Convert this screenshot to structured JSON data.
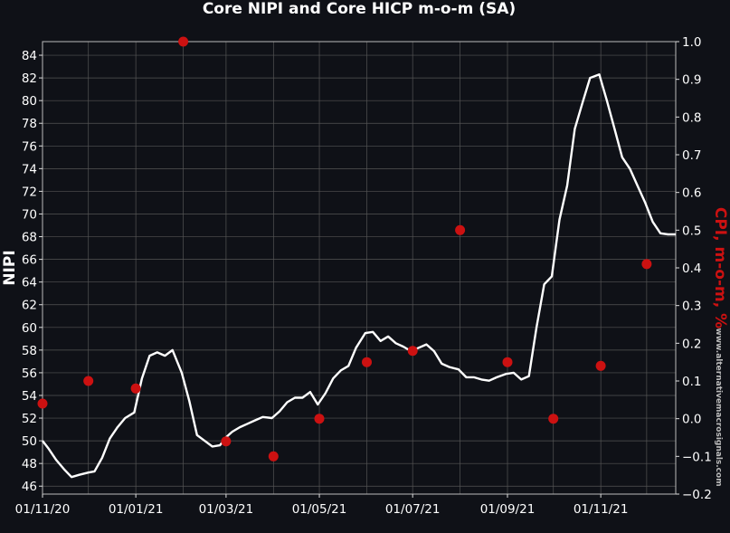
{
  "chart_data": {
    "type": "line",
    "title": "Core NIPI and Core HICP m-o-m (SA)",
    "ylabel_left": "NIPI",
    "ylabel_right": "CPI, m-o-m, %",
    "watermark": "www.alternativemacrosignals.com",
    "ylim_left": [
      45.3,
      85.2
    ],
    "ylim_right": [
      -0.2,
      1.0
    ],
    "left_ticks": [
      46,
      48,
      50,
      52,
      54,
      56,
      58,
      60,
      62,
      64,
      66,
      68,
      70,
      72,
      74,
      76,
      78,
      80,
      82,
      84
    ],
    "right_ticks": [
      "−0.2",
      "−0.1",
      "0.0",
      "0.1",
      "0.2",
      "0.3",
      "0.4",
      "0.5",
      "0.6",
      "0.7",
      "0.8",
      "0.9",
      "1.0"
    ],
    "right_tick_values": [
      -0.2,
      -0.1,
      0.0,
      0.1,
      0.2,
      0.3,
      0.4,
      0.5,
      0.6,
      0.7,
      0.8,
      0.9,
      1.0
    ],
    "x_ticks": [
      "01/11/20",
      "01/01/21",
      "01/03/21",
      "01/05/21",
      "01/07/21",
      "01/09/21",
      "01/11/21"
    ],
    "x_tick_dates": [
      "2020-11-01",
      "2021-01-01",
      "2021-03-01",
      "2021-05-01",
      "2021-07-01",
      "2021-09-01",
      "2021-11-01"
    ],
    "xlim": [
      "2020-11-01",
      "2021-12-20"
    ],
    "grid": true,
    "colors": {
      "background": "#0f1117",
      "line": "#ffffff",
      "dots": "#cc1111",
      "grid": "#555555",
      "right_axis": "#cc1111"
    },
    "series": [
      {
        "name": "NIPI",
        "axis": "left",
        "x": [
          "2020-11-01",
          "2020-11-05",
          "2020-11-10",
          "2020-11-15",
          "2020-11-20",
          "2020-11-25",
          "2020-12-01",
          "2020-12-05",
          "2020-12-10",
          "2020-12-15",
          "2020-12-20",
          "2020-12-25",
          "2020-12-31",
          "2021-01-05",
          "2021-01-10",
          "2021-01-15",
          "2021-01-20",
          "2021-01-25",
          "2021-01-31",
          "2021-02-05",
          "2021-02-10",
          "2021-02-15",
          "2021-02-20",
          "2021-02-25",
          "2021-03-01",
          "2021-03-05",
          "2021-03-10",
          "2021-03-15",
          "2021-03-20",
          "2021-03-25",
          "2021-03-31",
          "2021-04-05",
          "2021-04-10",
          "2021-04-15",
          "2021-04-20",
          "2021-04-25",
          "2021-04-30",
          "2021-05-05",
          "2021-05-10",
          "2021-05-15",
          "2021-05-20",
          "2021-05-25",
          "2021-05-31",
          "2021-06-05",
          "2021-06-10",
          "2021-06-15",
          "2021-06-20",
          "2021-06-25",
          "2021-06-30",
          "2021-07-05",
          "2021-07-10",
          "2021-07-15",
          "2021-07-20",
          "2021-07-25",
          "2021-07-31",
          "2021-08-05",
          "2021-08-10",
          "2021-08-15",
          "2021-08-20",
          "2021-08-25",
          "2021-08-31",
          "2021-09-05",
          "2021-09-10",
          "2021-09-15",
          "2021-09-20",
          "2021-09-25",
          "2021-09-30",
          "2021-10-05",
          "2021-10-10",
          "2021-10-15",
          "2021-10-20",
          "2021-10-25",
          "2021-10-31",
          "2021-11-05",
          "2021-11-10",
          "2021-11-15",
          "2021-11-20",
          "2021-11-25",
          "2021-11-30",
          "2021-12-05",
          "2021-12-10",
          "2021-12-15",
          "2021-12-20"
        ],
        "values": [
          50.0,
          49.3,
          48.3,
          47.5,
          46.8,
          47.0,
          47.2,
          47.3,
          48.5,
          50.2,
          51.2,
          52.0,
          52.5,
          55.5,
          57.5,
          57.8,
          57.5,
          58.0,
          56.0,
          53.5,
          50.5,
          50.0,
          49.5,
          49.6,
          50.3,
          50.8,
          51.2,
          51.5,
          51.8,
          52.1,
          52.0,
          52.6,
          53.4,
          53.8,
          53.8,
          54.3,
          53.2,
          54.2,
          55.5,
          56.2,
          56.6,
          58.2,
          59.5,
          59.6,
          58.8,
          59.2,
          58.6,
          58.3,
          57.9,
          58.2,
          58.5,
          57.9,
          56.8,
          56.5,
          56.3,
          55.6,
          55.6,
          55.4,
          55.3,
          55.6,
          55.9,
          56.0,
          55.4,
          55.7,
          60.0,
          63.8,
          64.5,
          69.5,
          72.5,
          77.5,
          79.8,
          82.0,
          82.3,
          80.0,
          77.5,
          75.0,
          74.0,
          72.5,
          71.0,
          69.3,
          68.3,
          68.2,
          68.2
        ]
      },
      {
        "name": "CPI, m-o-m, %",
        "axis": "right",
        "x": [
          "2020-11-01",
          "2020-12-01",
          "2021-01-01",
          "2021-02-01",
          "2021-03-01",
          "2021-04-01",
          "2021-05-01",
          "2021-06-01",
          "2021-07-01",
          "2021-08-01",
          "2021-09-01",
          "2021-10-01",
          "2021-11-01",
          "2021-12-01"
        ],
        "values": [
          0.04,
          0.1,
          0.08,
          1.0,
          -0.06,
          -0.1,
          0.0,
          0.15,
          0.18,
          0.5,
          0.15,
          0.0,
          0.14,
          0.41
        ]
      }
    ]
  }
}
